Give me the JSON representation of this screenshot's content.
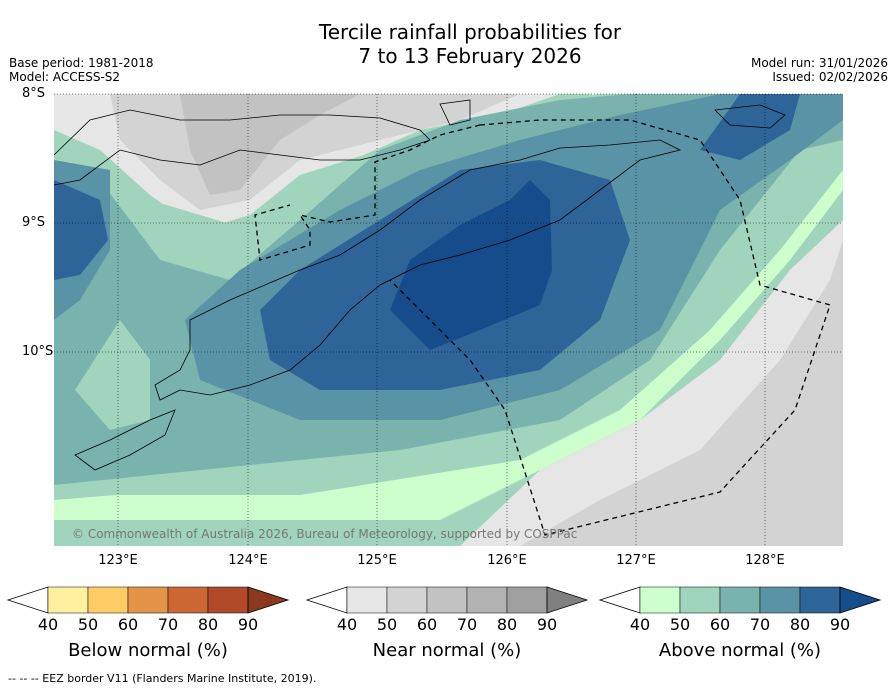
{
  "title_line1": "Tercile rainfall probabilities for",
  "title_line2": "7 to 13 February 2026",
  "meta": {
    "base_period": "Base period: 1981-2018",
    "model": "Model: ACCESS-S2",
    "model_run": "Model run: 31/01/2026",
    "issued": "Issued: 02/02/2026"
  },
  "axes": {
    "lat_labels": [
      "8°S",
      "9°S",
      "10°S"
    ],
    "lon_labels": [
      "123°E",
      "124°E",
      "125°E",
      "126°E",
      "127°E",
      "128°E"
    ]
  },
  "copyright": "© Commonwealth of Australia 2026, Bureau of Meteorology, supported by COSPPac",
  "colorbars": [
    {
      "title": "Below normal (%)",
      "ticks": [
        "40",
        "50",
        "60",
        "70",
        "80",
        "90"
      ],
      "colors": [
        "#ffffff",
        "#fff0a0",
        "#ffcc66",
        "#e39449",
        "#cc6633",
        "#b04a28",
        "#8b3a20"
      ]
    },
    {
      "title": "Near normal (%)",
      "ticks": [
        "40",
        "50",
        "60",
        "70",
        "80",
        "90"
      ],
      "colors": [
        "#ffffff",
        "#e6e6e6",
        "#d3d3d3",
        "#c2c2c2",
        "#b3b3b3",
        "#a0a0a0",
        "#808080"
      ]
    },
    {
      "title": "Above normal (%)",
      "ticks": [
        "40",
        "50",
        "60",
        "70",
        "80",
        "90"
      ],
      "colors": [
        "#ffffff",
        "#ccffcc",
        "#a0d4bd",
        "#7ab3ad",
        "#5a93a5",
        "#2f6499",
        "#174c8c"
      ]
    }
  ],
  "footer": "--  --  -- EEZ border V11 (Flanders Marine Institute, 2019)."
}
